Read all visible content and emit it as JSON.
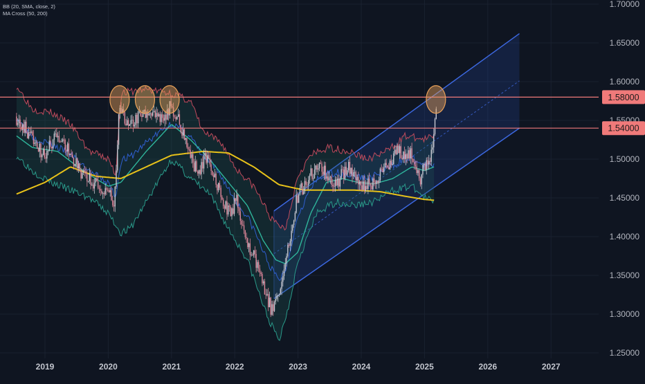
{
  "indicators": {
    "bb": "BB (20, SMA, close, 2)",
    "ma_cross": "MA Cross (50, 200)"
  },
  "colors": {
    "background": "#0f1521",
    "candle_up": "#c8c9d3",
    "candle_down": "#e0879a",
    "bb_band": "#c04a5c",
    "bb_mid": "#2f5fcf",
    "ma50": "#2fb59c",
    "ma200": "#e8c21a",
    "channel": "#3c68e0",
    "horizontal_line": "#f07a7a",
    "marker": "#e8a15a"
  },
  "chart_data": {
    "type": "candlestick",
    "x_labels": [
      "2019",
      "2020",
      "2021",
      "2022",
      "2023",
      "2024",
      "2025",
      "2026",
      "2027"
    ],
    "y_ticks": [
      "1.70000",
      "1.65000",
      "1.60000",
      "1.55000",
      "1.50000",
      "1.45000",
      "1.40000",
      "1.35000",
      "1.30000",
      "1.25000"
    ],
    "ylim": [
      1.25,
      1.7
    ],
    "horizontal_levels": [
      {
        "value": 1.58,
        "label": "1.58000"
      },
      {
        "value": 1.54,
        "label": "1.54000"
      }
    ],
    "resistance_markers": [
      {
        "date": 2020.18,
        "price": 1.577
      },
      {
        "date": 2020.58,
        "price": 1.577
      },
      {
        "date": 2020.97,
        "price": 1.577
      },
      {
        "date": 2025.18,
        "price": 1.577
      }
    ],
    "ascending_channel": {
      "start": 2022.62,
      "end": 2026.5,
      "upper": [
        1.433,
        1.662
      ],
      "middle": [
        1.378,
        1.601
      ],
      "lower": [
        1.32,
        1.54
      ]
    },
    "price_path": [
      [
        2018.55,
        1.555
      ],
      [
        2018.8,
        1.53
      ],
      [
        2019.0,
        1.505
      ],
      [
        2019.2,
        1.53
      ],
      [
        2019.4,
        1.51
      ],
      [
        2019.6,
        1.48
      ],
      [
        2019.8,
        1.47
      ],
      [
        2019.95,
        1.46
      ],
      [
        2020.12,
        1.445
      ],
      [
        2020.2,
        1.575
      ],
      [
        2020.3,
        1.54
      ],
      [
        2020.5,
        1.555
      ],
      [
        2020.7,
        1.565
      ],
      [
        2020.9,
        1.55
      ],
      [
        2021.0,
        1.57
      ],
      [
        2021.15,
        1.545
      ],
      [
        2021.3,
        1.505
      ],
      [
        2021.45,
        1.48
      ],
      [
        2021.55,
        1.5
      ],
      [
        2021.65,
        1.49
      ],
      [
        2021.8,
        1.45
      ],
      [
        2021.95,
        1.43
      ],
      [
        2022.05,
        1.45
      ],
      [
        2022.2,
        1.395
      ],
      [
        2022.35,
        1.37
      ],
      [
        2022.5,
        1.33
      ],
      [
        2022.6,
        1.305
      ],
      [
        2022.72,
        1.33
      ],
      [
        2022.85,
        1.38
      ],
      [
        2023.0,
        1.45
      ],
      [
        2023.2,
        1.48
      ],
      [
        2023.4,
        1.49
      ],
      [
        2023.6,
        1.465
      ],
      [
        2023.8,
        1.49
      ],
      [
        2024.0,
        1.465
      ],
      [
        2024.2,
        1.47
      ],
      [
        2024.4,
        1.49
      ],
      [
        2024.6,
        1.51
      ],
      [
        2024.8,
        1.505
      ],
      [
        2024.95,
        1.475
      ],
      [
        2025.0,
        1.49
      ],
      [
        2025.12,
        1.5
      ],
      [
        2025.2,
        1.565
      ]
    ],
    "ma200_path": [
      [
        2018.55,
        1.455
      ],
      [
        2019.0,
        1.47
      ],
      [
        2019.4,
        1.49
      ],
      [
        2019.8,
        1.478
      ],
      [
        2020.2,
        1.475
      ],
      [
        2020.6,
        1.49
      ],
      [
        2021.0,
        1.505
      ],
      [
        2021.5,
        1.51
      ],
      [
        2021.9,
        1.508
      ],
      [
        2022.3,
        1.49
      ],
      [
        2022.7,
        1.467
      ],
      [
        2023.1,
        1.46
      ],
      [
        2023.5,
        1.46
      ],
      [
        2023.9,
        1.46
      ],
      [
        2024.3,
        1.458
      ],
      [
        2024.7,
        1.452
      ],
      [
        2025.0,
        1.448
      ],
      [
        2025.15,
        1.447
      ]
    ],
    "ma50_path": [
      [
        2018.55,
        1.53
      ],
      [
        2018.8,
        1.515
      ],
      [
        2019.2,
        1.51
      ],
      [
        2019.6,
        1.485
      ],
      [
        2020.0,
        1.465
      ],
      [
        2020.2,
        1.47
      ],
      [
        2020.6,
        1.51
      ],
      [
        2021.0,
        1.545
      ],
      [
        2021.3,
        1.525
      ],
      [
        2021.6,
        1.5
      ],
      [
        2021.9,
        1.47
      ],
      [
        2022.2,
        1.44
      ],
      [
        2022.45,
        1.395
      ],
      [
        2022.65,
        1.37
      ],
      [
        2022.8,
        1.365
      ],
      [
        2023.0,
        1.38
      ],
      [
        2023.2,
        1.43
      ],
      [
        2023.45,
        1.47
      ],
      [
        2023.7,
        1.475
      ],
      [
        2023.95,
        1.47
      ],
      [
        2024.2,
        1.468
      ],
      [
        2024.5,
        1.475
      ],
      [
        2024.8,
        1.49
      ],
      [
        2025.0,
        1.485
      ],
      [
        2025.15,
        1.49
      ]
    ],
    "bb_upper_path": [
      [
        2018.55,
        1.595
      ],
      [
        2018.8,
        1.565
      ],
      [
        2019.1,
        1.56
      ],
      [
        2019.4,
        1.545
      ],
      [
        2019.7,
        1.51
      ],
      [
        2020.0,
        1.5
      ],
      [
        2020.12,
        1.48
      ],
      [
        2020.2,
        1.585
      ],
      [
        2020.6,
        1.59
      ],
      [
        2021.0,
        1.585
      ],
      [
        2021.3,
        1.575
      ],
      [
        2021.5,
        1.535
      ],
      [
        2021.8,
        1.52
      ],
      [
        2022.0,
        1.49
      ],
      [
        2022.3,
        1.465
      ],
      [
        2022.6,
        1.42
      ],
      [
        2022.8,
        1.41
      ],
      [
        2023.0,
        1.48
      ],
      [
        2023.2,
        1.505
      ],
      [
        2023.5,
        1.515
      ],
      [
        2023.8,
        1.51
      ],
      [
        2024.1,
        1.5
      ],
      [
        2024.4,
        1.51
      ],
      [
        2024.7,
        1.53
      ],
      [
        2025.0,
        1.525
      ],
      [
        2025.15,
        1.53
      ]
    ],
    "bb_lower_path": [
      [
        2018.55,
        1.505
      ],
      [
        2018.8,
        1.485
      ],
      [
        2019.1,
        1.47
      ],
      [
        2019.4,
        1.46
      ],
      [
        2019.7,
        1.45
      ],
      [
        2020.0,
        1.43
      ],
      [
        2020.2,
        1.405
      ],
      [
        2020.35,
        1.41
      ],
      [
        2020.6,
        1.445
      ],
      [
        2021.0,
        1.5
      ],
      [
        2021.3,
        1.475
      ],
      [
        2021.6,
        1.455
      ],
      [
        2021.9,
        1.41
      ],
      [
        2022.2,
        1.37
      ],
      [
        2022.5,
        1.3
      ],
      [
        2022.7,
        1.265
      ],
      [
        2022.85,
        1.31
      ],
      [
        2023.0,
        1.37
      ],
      [
        2023.3,
        1.43
      ],
      [
        2023.6,
        1.445
      ],
      [
        2023.9,
        1.44
      ],
      [
        2024.2,
        1.445
      ],
      [
        2024.5,
        1.46
      ],
      [
        2024.8,
        1.465
      ],
      [
        2025.0,
        1.45
      ],
      [
        2025.15,
        1.445
      ]
    ]
  }
}
